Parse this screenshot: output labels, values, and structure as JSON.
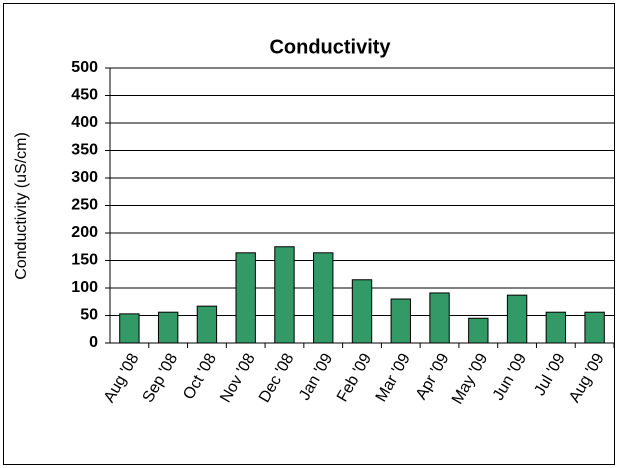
{
  "chart_data": {
    "type": "bar",
    "title": "Conductivity",
    "y_label": "Conductivity (uS/cm)",
    "categories": [
      "Aug '08",
      "Sep '08",
      "Oct '08",
      "Nov '08",
      "Dec '08",
      "Jan '09",
      "Feb '09",
      "Mar '09",
      "Apr '09",
      "May '09",
      "Jun '09",
      "Jul '09",
      "Aug '09"
    ],
    "values": [
      53,
      56,
      67,
      164,
      175,
      164,
      115,
      80,
      91,
      45,
      87,
      56,
      56
    ],
    "color": "#339966",
    "ylim": [
      0,
      500
    ],
    "yticks": [
      0,
      50,
      100,
      150,
      200,
      250,
      300,
      350,
      400,
      450,
      500
    ],
    "grid": true
  }
}
